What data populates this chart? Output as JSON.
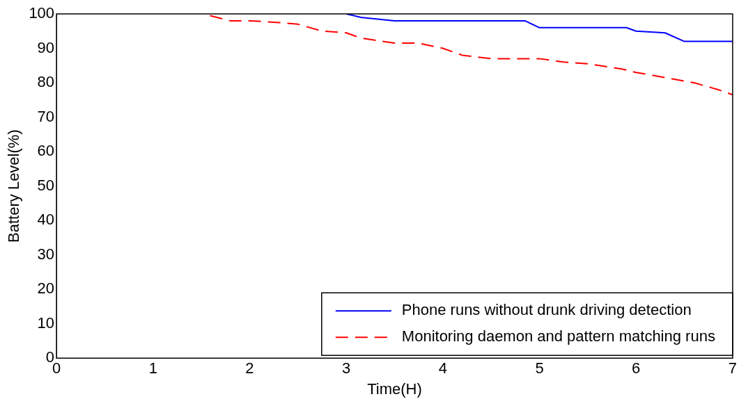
{
  "chart_data": {
    "type": "line",
    "xlabel": "Time(H)",
    "ylabel": "Battery Level(%)",
    "xlim": [
      0,
      7
    ],
    "xticks": [
      0,
      1,
      2,
      3,
      4,
      5,
      6,
      7
    ],
    "ylim": [
      0,
      100
    ],
    "yticks": [
      0,
      10,
      20,
      30,
      40,
      50,
      60,
      70,
      80,
      90,
      100
    ],
    "grid": false,
    "legend": "bottom right",
    "series": [
      {
        "name": "Phone runs without drunk driving detection",
        "color": "#0000ff",
        "line_style": "solid",
        "x": [
          3.0,
          3.15,
          3.5,
          4.85,
          5.0,
          5.9,
          6.0,
          6.3,
          6.5,
          7.0
        ],
        "values": [
          100,
          99,
          98,
          98,
          96,
          96,
          95,
          94.5,
          92,
          92
        ]
      },
      {
        "name": "Monitoring daemon and pattern matching runs",
        "color": "#ff0000",
        "line_style": "dashed",
        "x": [
          1.59,
          1.8,
          2.0,
          2.3,
          2.5,
          2.75,
          3.0,
          3.15,
          3.5,
          3.75,
          4.0,
          4.2,
          4.5,
          5.0,
          5.25,
          5.5,
          5.85,
          6.0,
          6.3,
          6.6,
          6.85,
          7.0
        ],
        "values": [
          99.5,
          98,
          98,
          97.5,
          97,
          95,
          94.5,
          93,
          91.5,
          91.5,
          90,
          88,
          87,
          87,
          86,
          85.5,
          84,
          83,
          81.5,
          80,
          78,
          76.5
        ]
      }
    ]
  }
}
